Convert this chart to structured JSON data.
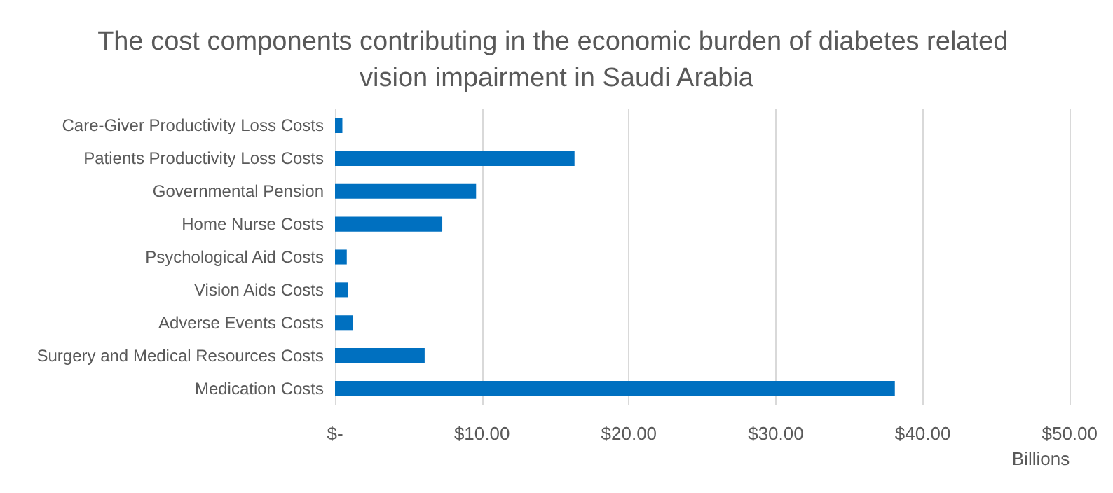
{
  "chart_data": {
    "type": "bar",
    "orientation": "horizontal",
    "title": "The cost components contributing in the economic burden of diabetes related vision impairment in Saudi Arabia",
    "xlabel": "Billions",
    "categories": [
      "Care-Giver Productivity Loss Costs",
      "Patients Productivity Loss Costs",
      "Governmental Pension",
      "Home Nurse Costs",
      "Psychological Aid Costs",
      "Vision Aids Costs",
      "Adverse Events Costs",
      "Surgery and Medical Resources Costs",
      "Medication Costs"
    ],
    "values": [
      0.5,
      16.3,
      9.6,
      7.3,
      0.8,
      0.9,
      1.2,
      6.1,
      38.1
    ],
    "color": "#0070c0",
    "xlim": [
      0,
      50
    ],
    "xticks": [
      {
        "value": 0,
        "label": "$-"
      },
      {
        "value": 10,
        "label": "$10.00"
      },
      {
        "value": 20,
        "label": "$20.00"
      },
      {
        "value": 30,
        "label": "$30.00"
      },
      {
        "value": 40,
        "label": "$40.00"
      },
      {
        "value": 50,
        "label": "$50.00"
      }
    ],
    "grid": "x"
  }
}
